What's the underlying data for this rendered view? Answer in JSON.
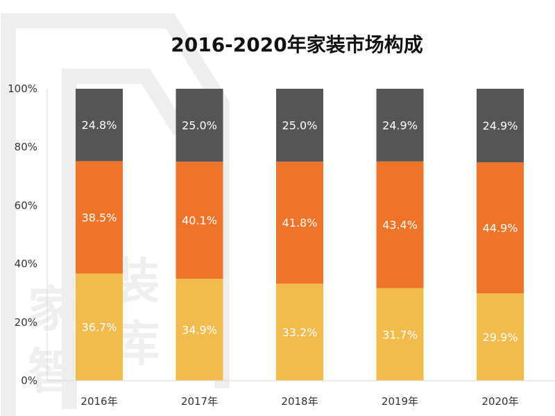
{
  "watermark": {
    "text_top": "家",
    "text_bottom": "智",
    "text_right_top": "装",
    "text_right_bottom": "库"
  },
  "chart_data": {
    "type": "bar",
    "stacked": true,
    "title": "2016-2020年家装市场构成",
    "categories": [
      "2016年",
      "2017年",
      "2018年",
      "2019年",
      "2020年"
    ],
    "ylim": [
      0,
      100
    ],
    "yticks": [
      "0%",
      "20%",
      "40%",
      "60%",
      "80%",
      "100%"
    ],
    "ytick_values": [
      0,
      20,
      40,
      60,
      80,
      100
    ],
    "legend": "none",
    "grid": false,
    "series": [
      {
        "color": "#F2BB4D",
        "values": [
          36.7,
          34.9,
          33.2,
          31.7,
          29.9
        ],
        "labels": [
          "36.7%",
          "34.9%",
          "33.2%",
          "31.7%",
          "29.9%"
        ]
      },
      {
        "color": "#EE7429",
        "values": [
          38.5,
          40.1,
          41.8,
          43.4,
          44.9
        ],
        "labels": [
          "38.5%",
          "40.1%",
          "41.8%",
          "43.4%",
          "44.9%"
        ]
      },
      {
        "color": "#555555",
        "values": [
          24.8,
          25.0,
          25.0,
          24.9,
          24.9
        ],
        "labels": [
          "24.8%",
          "25.0%",
          "25.0%",
          "24.9%",
          "24.9%"
        ]
      }
    ]
  }
}
